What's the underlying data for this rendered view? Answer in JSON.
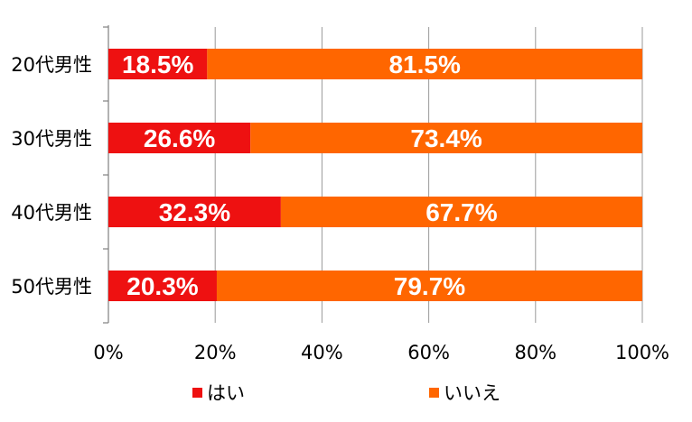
{
  "chart_data": {
    "type": "bar",
    "orientation": "horizontal",
    "stacked": true,
    "categories": [
      "20代男性",
      "30代男性",
      "40代男性",
      "50代男性"
    ],
    "series": [
      {
        "name": "はい",
        "values": [
          18.5,
          26.6,
          32.3,
          20.3
        ],
        "labels": [
          "18.5%",
          "26.6%",
          "32.3%",
          "20.3%"
        ],
        "color": "#ee1111"
      },
      {
        "name": "いいえ",
        "values": [
          81.5,
          73.4,
          67.7,
          79.7
        ],
        "labels": [
          "81.5%",
          "73.4%",
          "67.7%",
          "79.7%"
        ],
        "color": "#ff6600"
      }
    ],
    "x_ticks": [
      "0%",
      "20%",
      "40%",
      "60%",
      "80%",
      "100%"
    ],
    "xlim": [
      0,
      100
    ],
    "grid": true,
    "legend_position": "bottom"
  }
}
